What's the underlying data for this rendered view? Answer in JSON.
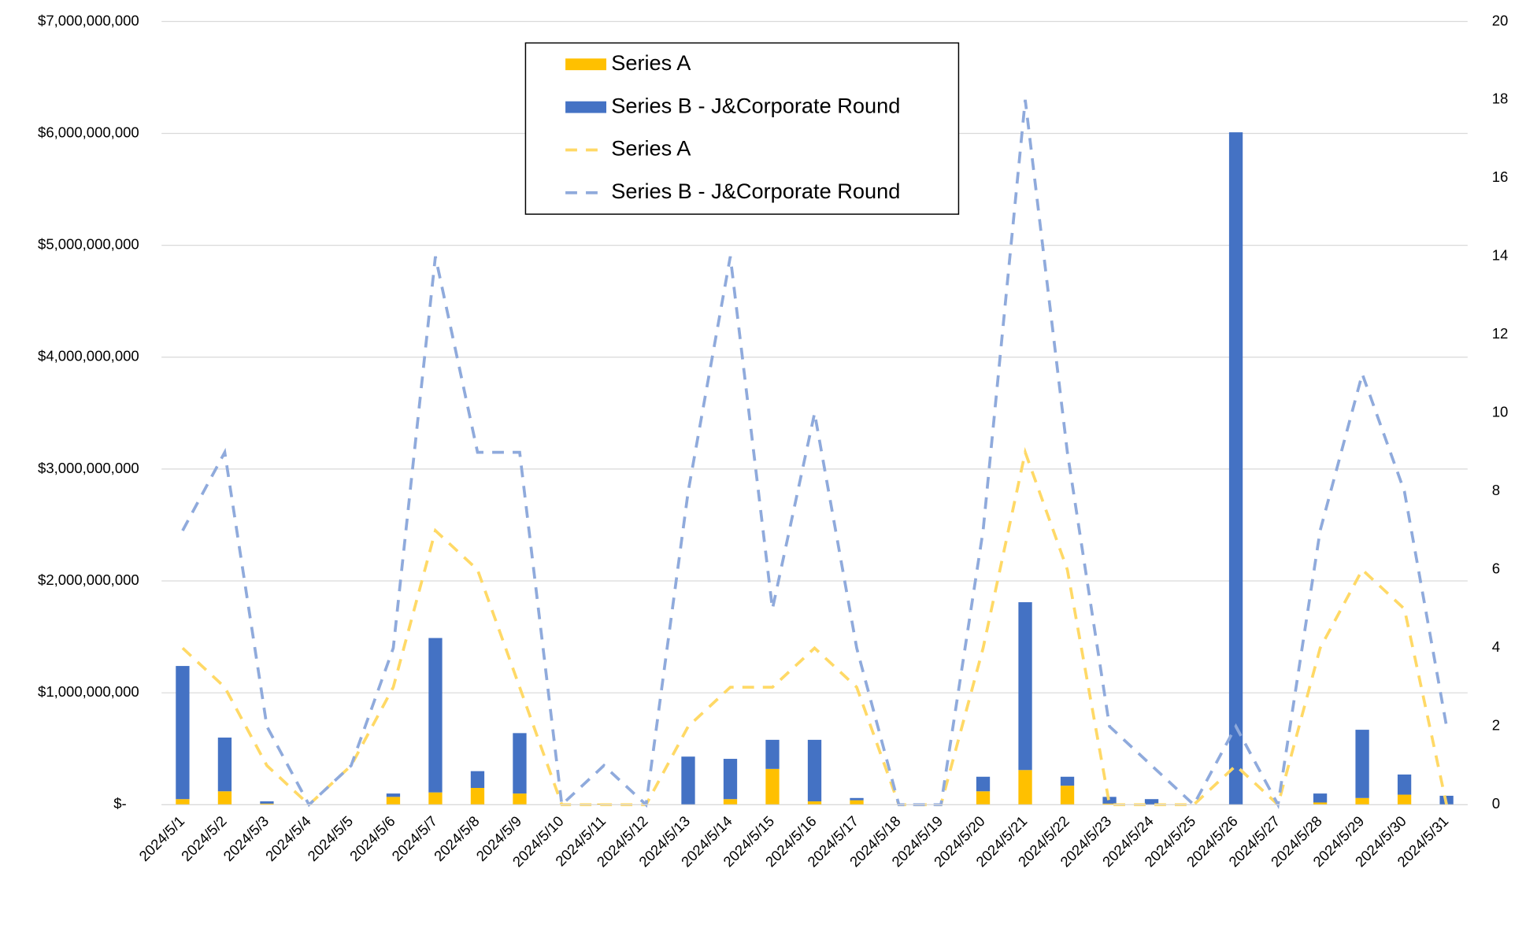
{
  "chart_data": {
    "type": "combo",
    "categories": [
      "2024/5/1",
      "2024/5/2",
      "2024/5/3",
      "2024/5/4",
      "2024/5/5",
      "2024/5/6",
      "2024/5/7",
      "2024/5/8",
      "2024/5/9",
      "2024/5/10",
      "2024/5/11",
      "2024/5/12",
      "2024/5/13",
      "2024/5/14",
      "2024/5/15",
      "2024/5/16",
      "2024/5/17",
      "2024/5/18",
      "2024/5/19",
      "2024/5/20",
      "2024/5/21",
      "2024/5/22",
      "2024/5/23",
      "2024/5/24",
      "2024/5/25",
      "2024/5/26",
      "2024/5/27",
      "2024/5/28",
      "2024/5/29",
      "2024/5/30",
      "2024/5/31"
    ],
    "series": [
      {
        "name": "Series A",
        "type": "bar",
        "color": "#FFC000",
        "values": [
          50000000,
          120000000,
          10000000,
          0,
          0,
          70000000,
          110000000,
          150000000,
          100000000,
          0,
          10000000,
          0,
          0,
          50000000,
          320000000,
          30000000,
          40000000,
          0,
          0,
          120000000,
          310000000,
          170000000,
          10000000,
          0,
          0,
          0,
          0,
          20000000,
          60000000,
          90000000,
          0
        ]
      },
      {
        "name": "Series B - J&Corporate Round",
        "type": "bar",
        "color": "#4472C4",
        "values": [
          1190000000,
          480000000,
          20000000,
          0,
          0,
          30000000,
          1380000000,
          150000000,
          540000000,
          0,
          0,
          0,
          430000000,
          360000000,
          260000000,
          550000000,
          20000000,
          0,
          0,
          130000000,
          1500000000,
          80000000,
          60000000,
          50000000,
          0,
          6010000000,
          0,
          80000000,
          610000000,
          180000000,
          80000000
        ]
      },
      {
        "name": "Series A",
        "type": "line",
        "axis": "y2",
        "color": "#FFD966",
        "values": [
          4,
          3,
          1,
          0,
          1,
          3,
          7,
          6,
          3,
          0,
          0,
          0,
          2,
          3,
          3,
          4,
          3,
          0,
          0,
          4,
          9,
          6,
          0,
          0,
          0,
          1,
          0,
          4,
          6,
          5,
          0
        ]
      },
      {
        "name": "Series B - J&Corporate Round",
        "type": "line",
        "axis": "y2",
        "color": "#8FAADC",
        "values": [
          7,
          9,
          2,
          0,
          1,
          4,
          14,
          9,
          9,
          0,
          1,
          0,
          8,
          14,
          5,
          10,
          4,
          0,
          0,
          7,
          18,
          9,
          2,
          1,
          0,
          2,
          0,
          7,
          11,
          8,
          2
        ]
      }
    ],
    "ylim": [
      0,
      7000000000
    ],
    "yticks": [
      {
        "value": 0,
        "label": "$-"
      },
      {
        "value": 1000000000,
        "label": "$1,000,000,000"
      },
      {
        "value": 2000000000,
        "label": "$2,000,000,000"
      },
      {
        "value": 3000000000,
        "label": "$3,000,000,000"
      },
      {
        "value": 4000000000,
        "label": "$4,000,000,000"
      },
      {
        "value": 5000000000,
        "label": "$5,000,000,000"
      },
      {
        "value": 6000000000,
        "label": "$6,000,000,000"
      },
      {
        "value": 7000000000,
        "label": "$7,000,000,000"
      }
    ],
    "y2lim": [
      0,
      20
    ],
    "y2ticks": [
      0,
      2,
      4,
      6,
      8,
      10,
      12,
      14,
      16,
      18,
      20
    ],
    "grid": true,
    "legend": "top"
  }
}
